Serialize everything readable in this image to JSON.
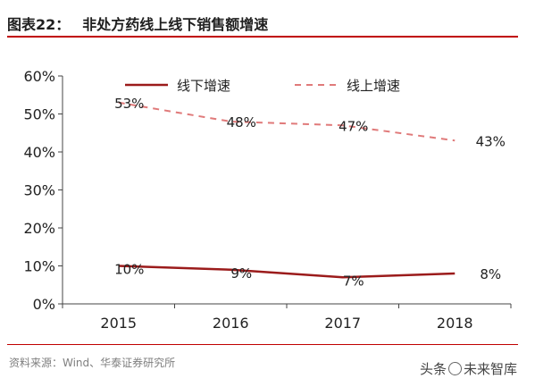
{
  "figure": {
    "label": "图表22：",
    "title": "非处方药线上线下销售额增速",
    "source": "资料来源：Wind、华泰证券研究所",
    "watermark_prefix": "头条",
    "watermark_name": "未来智库"
  },
  "colors": {
    "offline": "#9b1b1b",
    "online": "#e07a7a",
    "axis": "#444444",
    "rule": "#c00000",
    "text": "#222222"
  },
  "chart_data": {
    "type": "line",
    "categories": [
      "2015",
      "2016",
      "2017",
      "2018"
    ],
    "series": [
      {
        "name": "线下增速",
        "style": "solid",
        "values": [
          10,
          9,
          7,
          8
        ],
        "labels": [
          "10%",
          "9%",
          "7%",
          "8%"
        ]
      },
      {
        "name": "线上增速",
        "style": "dashed",
        "values": [
          53,
          48,
          47,
          43
        ],
        "labels": [
          "53%",
          "48%",
          "47%",
          "43%"
        ]
      }
    ],
    "y_ticks": [
      "0%",
      "10%",
      "20%",
      "30%",
      "40%",
      "50%",
      "60%"
    ],
    "ylim": [
      0,
      60
    ],
    "legend_position": "top",
    "grid": false
  }
}
